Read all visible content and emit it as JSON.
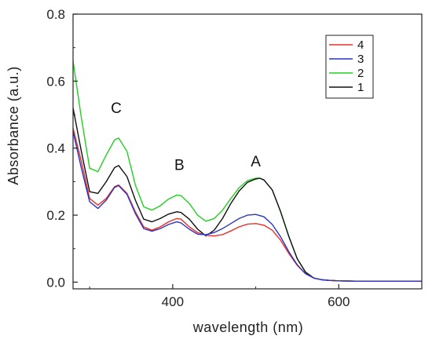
{
  "chart_data": {
    "type": "line",
    "xlabel": "wavelength (nm)",
    "ylabel": "Absorbance (a.u.)",
    "xlim": [
      280,
      700
    ],
    "ylim": [
      -0.02,
      0.8
    ],
    "x_ticks": [
      400,
      600
    ],
    "y_ticks": [
      0.0,
      0.2,
      0.4,
      0.6,
      0.8
    ],
    "x_tick_labels": [
      "400",
      "600"
    ],
    "y_tick_labels": [
      "0.0",
      "0.2",
      "0.4",
      "0.6",
      "0.8"
    ],
    "grid": false,
    "legend_position": "top-right",
    "annotations": [
      {
        "text": "C",
        "x": 332,
        "y": 0.505
      },
      {
        "text": "B",
        "x": 408,
        "y": 0.335
      },
      {
        "text": "A",
        "x": 500,
        "y": 0.345
      }
    ],
    "series": [
      {
        "name": "4",
        "color": "#e8302a",
        "x": [
          280,
          290,
          300,
          310,
          320,
          330,
          335,
          345,
          355,
          365,
          375,
          385,
          395,
          405,
          410,
          420,
          430,
          440,
          450,
          460,
          470,
          480,
          490,
          500,
          510,
          520,
          530,
          540,
          550,
          560,
          570,
          580,
          590,
          600,
          620,
          640,
          660,
          680,
          700
        ],
        "y": [
          0.46,
          0.36,
          0.25,
          0.23,
          0.25,
          0.285,
          0.29,
          0.265,
          0.21,
          0.165,
          0.155,
          0.165,
          0.18,
          0.19,
          0.188,
          0.165,
          0.148,
          0.14,
          0.138,
          0.142,
          0.153,
          0.165,
          0.173,
          0.175,
          0.17,
          0.155,
          0.125,
          0.085,
          0.05,
          0.025,
          0.012,
          0.007,
          0.005,
          0.004,
          0.003,
          0.003,
          0.003,
          0.003,
          0.003
        ]
      },
      {
        "name": "3",
        "color": "#2a35c8",
        "x": [
          280,
          290,
          300,
          310,
          320,
          330,
          335,
          345,
          355,
          365,
          375,
          385,
          395,
          405,
          410,
          420,
          430,
          440,
          450,
          460,
          470,
          480,
          490,
          500,
          510,
          520,
          530,
          540,
          550,
          560,
          570,
          580,
          590,
          600,
          620,
          640,
          660,
          680,
          700
        ],
        "y": [
          0.45,
          0.34,
          0.24,
          0.22,
          0.245,
          0.283,
          0.288,
          0.262,
          0.205,
          0.16,
          0.152,
          0.16,
          0.172,
          0.18,
          0.177,
          0.158,
          0.143,
          0.142,
          0.148,
          0.16,
          0.175,
          0.19,
          0.2,
          0.202,
          0.195,
          0.172,
          0.135,
          0.09,
          0.052,
          0.025,
          0.012,
          0.007,
          0.005,
          0.004,
          0.003,
          0.003,
          0.003,
          0.003,
          0.003
        ]
      },
      {
        "name": "2",
        "color": "#22d022",
        "x": [
          280,
          290,
          300,
          310,
          320,
          330,
          335,
          345,
          355,
          365,
          375,
          385,
          395,
          405,
          410,
          420,
          430,
          440,
          450,
          460,
          470,
          480,
          490,
          500,
          505,
          510,
          520,
          530,
          540,
          550,
          560,
          570,
          580,
          590,
          600,
          620,
          640,
          660,
          680,
          700
        ],
        "y": [
          0.66,
          0.49,
          0.34,
          0.33,
          0.38,
          0.425,
          0.43,
          0.39,
          0.29,
          0.225,
          0.215,
          0.228,
          0.248,
          0.26,
          0.258,
          0.235,
          0.2,
          0.182,
          0.19,
          0.215,
          0.25,
          0.282,
          0.303,
          0.31,
          0.31,
          0.305,
          0.275,
          0.21,
          0.135,
          0.07,
          0.03,
          0.012,
          0.007,
          0.005,
          0.004,
          0.003,
          0.003,
          0.003,
          0.003,
          0.003
        ]
      },
      {
        "name": "1",
        "color": "#111111",
        "x": [
          280,
          290,
          300,
          310,
          320,
          330,
          335,
          345,
          355,
          365,
          375,
          385,
          395,
          405,
          410,
          420,
          430,
          440,
          450,
          460,
          470,
          480,
          490,
          500,
          505,
          510,
          520,
          530,
          540,
          550,
          560,
          570,
          580,
          590,
          600,
          620,
          640,
          660,
          680,
          700
        ],
        "y": [
          0.52,
          0.39,
          0.27,
          0.265,
          0.3,
          0.342,
          0.348,
          0.315,
          0.245,
          0.188,
          0.18,
          0.19,
          0.203,
          0.21,
          0.208,
          0.188,
          0.158,
          0.138,
          0.155,
          0.19,
          0.235,
          0.272,
          0.298,
          0.308,
          0.31,
          0.305,
          0.275,
          0.21,
          0.135,
          0.07,
          0.03,
          0.012,
          0.007,
          0.005,
          0.004,
          0.003,
          0.003,
          0.003,
          0.003,
          0.003
        ]
      }
    ]
  }
}
